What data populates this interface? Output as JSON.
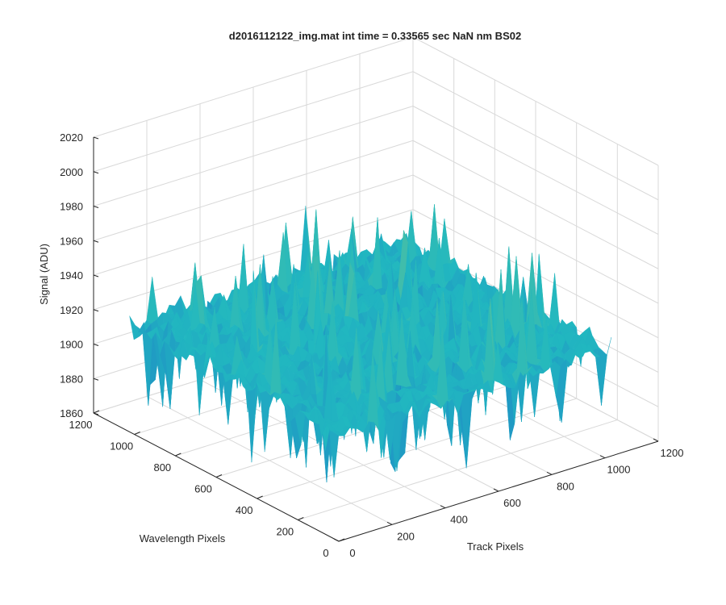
{
  "chart_data": {
    "type": "surface",
    "title": "d2016112122_img.mat int time = 0.33565 sec  NaN nm BS02",
    "xlabel": "Track Pixels",
    "ylabel": "Wavelength Pixels",
    "zlabel": "Signal (ADU)",
    "xlim": [
      0,
      1200
    ],
    "ylim": [
      0,
      1200
    ],
    "zlim": [
      1860,
      2020
    ],
    "x_ticks": [
      "0",
      "200",
      "400",
      "600",
      "800",
      "1000",
      "1200"
    ],
    "y_ticks": [
      "0",
      "200",
      "400",
      "600",
      "800",
      "1000",
      "1200"
    ],
    "z_ticks": [
      "1860",
      "1880",
      "1900",
      "1920",
      "1940",
      "1960",
      "1980",
      "2000",
      "2020"
    ],
    "surface_extent": {
      "x": [
        0,
        1024
      ],
      "y": [
        0,
        1024
      ]
    },
    "mean_signal": 1922,
    "signal_range": [
      1875,
      2000
    ],
    "grid": true,
    "colormap": "parula",
    "colors": {
      "surface_low": "#1f77c8",
      "surface_mid": "#21b8c0",
      "surface_high": "#b8d25a",
      "grid": "#d9d9d9",
      "axis": "#262626"
    }
  }
}
